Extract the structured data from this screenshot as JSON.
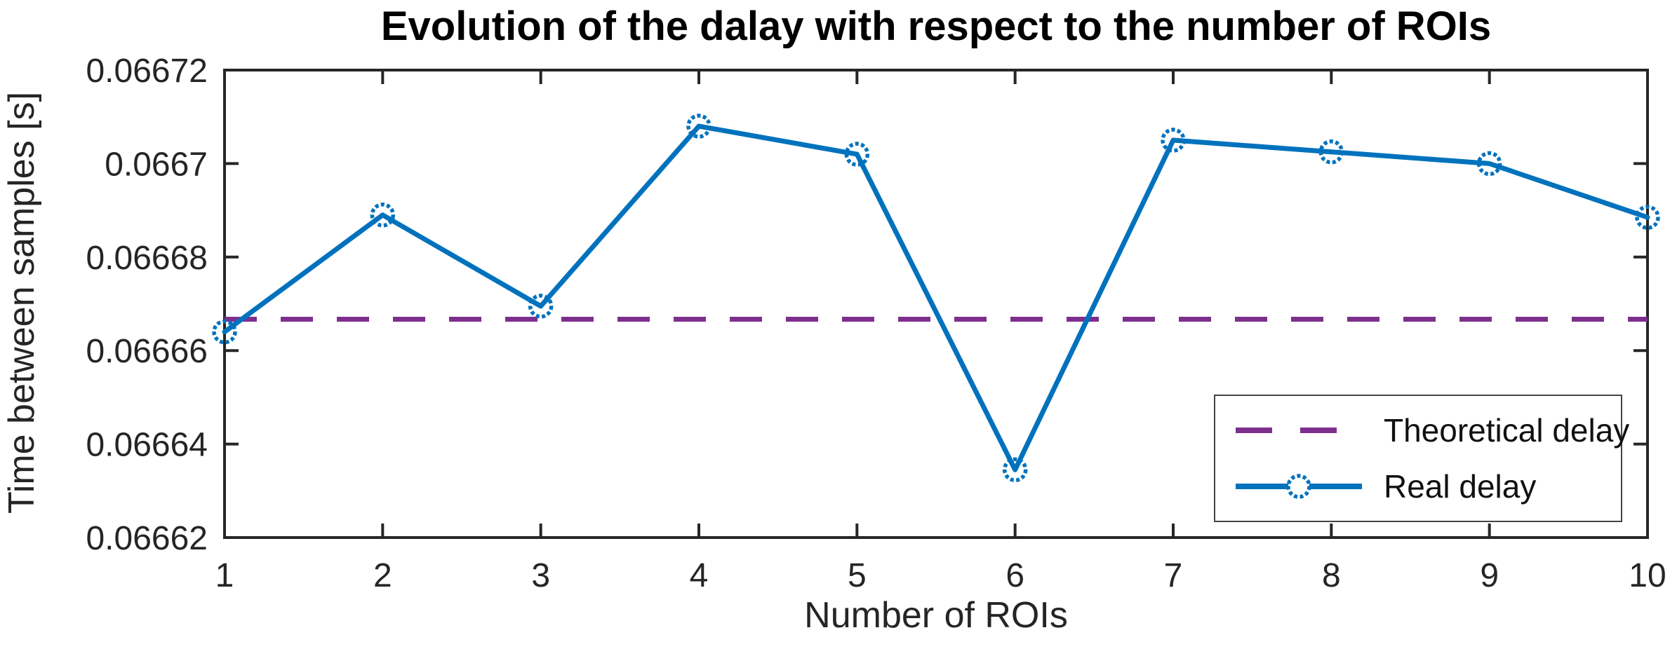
{
  "chart_data": {
    "type": "line",
    "title": "Evolution of the dalay with respect to the number of ROIs",
    "xlabel": "Number of ROIs",
    "ylabel": "Time between samples [s]",
    "x": [
      1,
      2,
      3,
      4,
      5,
      6,
      7,
      8,
      9,
      10
    ],
    "series": [
      {
        "name": "Theoretical delay",
        "color": "#7E2F8E",
        "style": "dashed",
        "values": [
          0.0666667,
          0.0666667,
          0.0666667,
          0.0666667,
          0.0666667,
          0.0666667,
          0.0666667,
          0.0666667,
          0.0666667,
          0.0666667
        ]
      },
      {
        "name": "Real delay",
        "color": "#0072BD",
        "style": "solid-circle-marker",
        "values": [
          0.066664,
          0.066689,
          0.0666695,
          0.066708,
          0.066702,
          0.0666345,
          0.066705,
          0.0667025,
          0.0667,
          0.0666885
        ]
      }
    ],
    "xlim": [
      1,
      10
    ],
    "ylim": [
      0.06662,
      0.06672
    ],
    "xticks": {
      "values": [
        1,
        2,
        3,
        4,
        5,
        6,
        7,
        8,
        9,
        10
      ],
      "labels": [
        "1",
        "2",
        "3",
        "4",
        "5",
        "6",
        "7",
        "8",
        "9",
        "10"
      ]
    },
    "yticks": {
      "values": [
        0.06662,
        0.06664,
        0.06666,
        0.06668,
        0.0667,
        0.06672
      ],
      "labels": [
        "0.06662",
        "0.06664",
        "0.06666",
        "0.06668",
        "0.0667",
        "0.06672"
      ]
    },
    "legend": {
      "position": "lower right",
      "entries": [
        "Theoretical delay",
        "Real delay"
      ]
    },
    "grid": false,
    "axis_color": "#262626",
    "background_color": "#ffffff"
  }
}
